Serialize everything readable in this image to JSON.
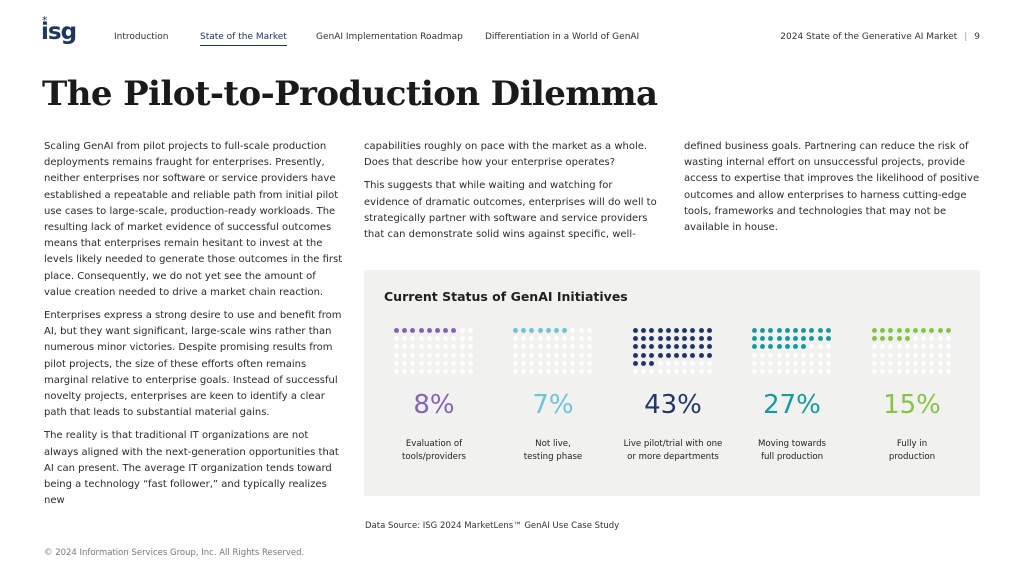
{
  "logo": {
    "text": "isg",
    "star": "*"
  },
  "nav": {
    "items": [
      {
        "label": "Introduction",
        "active": false
      },
      {
        "label": "State of the Market",
        "active": true
      },
      {
        "label": "GenAI Implementation Roadmap",
        "active": false
      },
      {
        "label": "Differentiation in a World of GenAI",
        "active": false
      }
    ],
    "report_title": "2024 State of the Generative AI Market",
    "separator": "|",
    "page_number": "9"
  },
  "title": "The Pilot-to-Production Dilemma",
  "body": {
    "col1": [
      "Scaling GenAI from pilot projects to full-scale production deployments remains fraught for enterprises. Presently, neither enterprises nor software or service providers have established a repeatable and reliable path from initial pilot use cases to large-scale, production-ready workloads. The resulting lack of market evidence of successful outcomes means that enterprises remain hesitant to invest at the levels likely needed to generate those outcomes in the first place. Consequently, we do not yet see the amount of value creation needed to drive a market chain reaction.",
      "Enterprises express a strong desire to use and benefit from AI, but they want significant, large-scale wins rather than numerous minor victories. Despite promising results from pilot projects, the size of these efforts often remains marginal relative to enterprise goals. Instead of successful novelty projects, enterprises are keen to identify a clear path that leads to substantial material gains.",
      "The reality is that traditional IT organizations are not always aligned with the next-generation opportunities that AI can present. The average IT organization tends toward being a technology “fast follower,” and typically realizes new"
    ],
    "col2": [
      "capabilities roughly on pace with the market as a whole. Does that describe how your enterprise operates?",
      "This suggests that while waiting and watching for evidence of dramatic outcomes, enterprises will do well to strategically partner with software and service providers that can demonstrate solid wins against specific, well-"
    ],
    "col3": [
      "defined business goals. Partnering can reduce the risk of wasting internal effort on unsuccessful projects, provide access to expertise that improves the likelihood of positive outcomes and allow enterprises to harness cutting-edge tools, frameworks and technologies that may not be available in house."
    ]
  },
  "chart_data": {
    "type": "dot-matrix",
    "title": "Current Status of GenAI Initiatives",
    "grid_size": 100,
    "categories": [
      {
        "label_line1": "Evaluation of",
        "label_line2": "tools/providers",
        "value": 8,
        "display": "8%",
        "color": "#8464b8"
      },
      {
        "label_line1": "Not live,",
        "label_line2": "testing phase",
        "value": 7,
        "display": "7%",
        "color": "#6cc4db"
      },
      {
        "label_line1": "Live pilot/trial with one",
        "label_line2": "or more departments",
        "value": 43,
        "display": "43%",
        "color": "#20386a"
      },
      {
        "label_line1": "Moving towards",
        "label_line2": "full production",
        "value": 27,
        "display": "27%",
        "color": "#129da3"
      },
      {
        "label_line1": "Fully in",
        "label_line2": "production",
        "value": 15,
        "display": "15%",
        "color": "#86c540"
      }
    ],
    "empty_color": "#ffffff"
  },
  "footer": {
    "source": "Data Source: ISG 2024 MarketLens™ GenAI Use Case Study",
    "copyright": "© 2024 Information Services Group, Inc. All Rights Reserved."
  }
}
